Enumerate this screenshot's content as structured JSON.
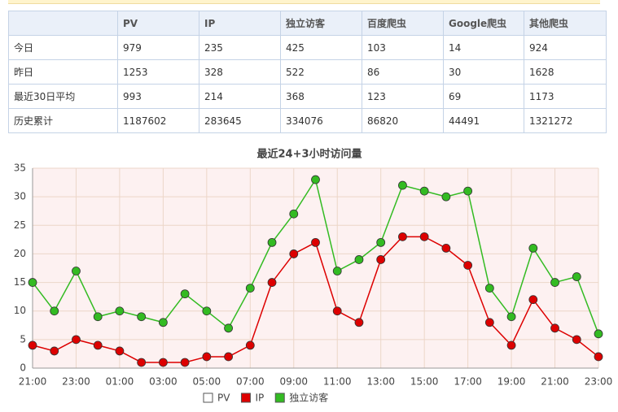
{
  "table": {
    "header": [
      "",
      "PV",
      "IP",
      "独立访客",
      "百度爬虫",
      "Google爬虫",
      "其他爬虫"
    ],
    "rows": [
      [
        "今日",
        "979",
        "235",
        "425",
        "103",
        "14",
        "924"
      ],
      [
        "昨日",
        "1253",
        "328",
        "522",
        "86",
        "30",
        "1628"
      ],
      [
        "最近30日平均",
        "993",
        "214",
        "368",
        "123",
        "69",
        "1173"
      ],
      [
        "历史累计",
        "1187602",
        "283645",
        "334076",
        "86820",
        "44491",
        "1321272"
      ]
    ]
  },
  "chart_data": {
    "type": "line",
    "title": "最近24+3小时访问量",
    "categories": [
      "21:00",
      null,
      "23:00",
      null,
      "01:00",
      null,
      "03:00",
      null,
      "05:00",
      null,
      "07:00",
      null,
      "09:00",
      null,
      "11:00",
      null,
      "13:00",
      null,
      "15:00",
      null,
      "17:00",
      null,
      "19:00",
      null,
      "21:00",
      null,
      "23:00"
    ],
    "ylim": [
      0,
      35
    ],
    "yticks": [
      0,
      5,
      10,
      15,
      20,
      25,
      30,
      35
    ],
    "grid": true,
    "series": [
      {
        "name": "PV",
        "color": "#ffffff",
        "visible": false
      },
      {
        "name": "IP",
        "color": "#dd0000",
        "visible": true,
        "values": [
          4,
          3,
          5,
          4,
          3,
          1,
          1,
          1,
          2,
          2,
          4,
          15,
          20,
          22,
          10,
          8,
          19,
          23,
          23,
          21,
          18,
          8,
          4,
          12,
          7,
          5,
          2
        ]
      },
      {
        "name": "独立访客",
        "color": "#33bb22",
        "visible": true,
        "values": [
          15,
          10,
          17,
          9,
          10,
          9,
          8,
          13,
          10,
          7,
          14,
          22,
          27,
          33,
          17,
          19,
          22,
          32,
          31,
          30,
          31,
          14,
          9,
          21,
          15,
          16,
          6
        ]
      }
    ]
  }
}
